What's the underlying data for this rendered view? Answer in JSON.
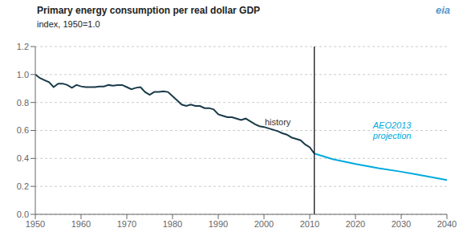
{
  "chart_data": {
    "type": "line",
    "title": "Primary energy  consumption  per  real  dollar  GDP",
    "subtitle": "index, 1950=1.0",
    "logo": "eia",
    "xlim": [
      1950,
      2040
    ],
    "ylim": [
      0.0,
      1.2
    ],
    "xticks": [
      1950,
      1960,
      1970,
      1980,
      1990,
      2000,
      2010,
      2020,
      2030,
      2040
    ],
    "yticks": [
      {
        "value": 0.0,
        "label": "0.0"
      },
      0.2,
      0.4,
      0.6,
      0.8,
      {
        "value": 1.0,
        "label": "1.0"
      },
      1.2
    ],
    "grid": "y",
    "divider": 2011,
    "series": [
      {
        "color": "#1a3a4a",
        "x": [
          1950,
          1951,
          1952,
          1953,
          1954,
          1955,
          1956,
          1957,
          1958,
          1959,
          1960,
          1961,
          1962,
          1963,
          1964,
          1965,
          1966,
          1967,
          1968,
          1969,
          1970,
          1971,
          1972,
          1973,
          1974,
          1975,
          1976,
          1977,
          1978,
          1979,
          1980,
          1981,
          1982,
          1983,
          1984,
          1985,
          1986,
          1987,
          1988,
          1989,
          1990,
          1991,
          1992,
          1993,
          1994,
          1995,
          1996,
          1997,
          1998,
          1999,
          2000,
          2001,
          2002,
          2003,
          2004,
          2005,
          2006,
          2007,
          2008,
          2009,
          2010,
          2011
        ],
        "values": [
          1.0,
          0.975,
          0.96,
          0.945,
          0.91,
          0.935,
          0.935,
          0.925,
          0.905,
          0.925,
          0.915,
          0.91,
          0.91,
          0.91,
          0.915,
          0.915,
          0.925,
          0.92,
          0.925,
          0.925,
          0.91,
          0.895,
          0.905,
          0.91,
          0.875,
          0.855,
          0.875,
          0.875,
          0.88,
          0.875,
          0.845,
          0.815,
          0.785,
          0.775,
          0.785,
          0.775,
          0.775,
          0.76,
          0.76,
          0.75,
          0.715,
          0.705,
          0.695,
          0.695,
          0.685,
          0.675,
          0.685,
          0.665,
          0.645,
          0.63,
          0.625,
          0.615,
          0.605,
          0.595,
          0.58,
          0.57,
          0.55,
          0.54,
          0.53,
          0.5,
          0.48,
          0.435
        ]
      },
      {
        "color": "#00aadd",
        "x": [
          2011,
          2015,
          2020,
          2025,
          2030,
          2035,
          2040
        ],
        "values": [
          0.435,
          0.395,
          0.36,
          0.33,
          0.305,
          0.275,
          0.245
        ]
      }
    ],
    "annotations": [
      {
        "text": "history",
        "x": 2003,
        "y": 0.66,
        "color": "#333333"
      },
      {
        "text": "AEO2013\nprojection",
        "x": 2028,
        "y": 0.6,
        "color": "#00aadd",
        "italic": true
      }
    ]
  }
}
